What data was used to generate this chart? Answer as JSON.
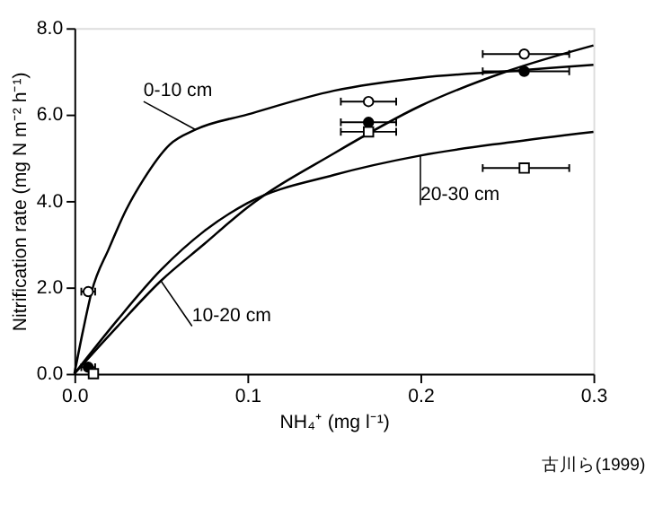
{
  "chart_data": {
    "type": "line",
    "xlabel": "NH₄⁺ (mg l⁻¹)",
    "ylabel": "Nitrification rate (mg N m⁻² h⁻¹)",
    "xlim": [
      0,
      0.3
    ],
    "ylim": [
      0,
      8
    ],
    "xticks": [
      {
        "value": 0,
        "label": "0.0"
      },
      0.1,
      0.2,
      0.3
    ],
    "yticks": [
      {
        "value": 0,
        "label": "0.0"
      },
      {
        "value": 2,
        "label": "2.0"
      },
      {
        "value": 4,
        "label": "4.0"
      },
      {
        "value": 6,
        "label": "6.0"
      },
      {
        "value": 8,
        "label": "8.0"
      }
    ],
    "grid": false,
    "series": [
      {
        "name": "0-10 cm",
        "color": "#000000",
        "x": [
          0,
          0.005,
          0.01,
          0.02,
          0.03,
          0.04,
          0.055,
          0.07,
          0.1,
          0.15,
          0.2,
          0.25,
          0.3
        ],
        "values": [
          0,
          1.0,
          1.9,
          2.9,
          3.8,
          4.5,
          5.3,
          5.65,
          6.0,
          6.55,
          6.85,
          7.0,
          7.15
        ]
      },
      {
        "name": "10-20 cm",
        "color": "#000000",
        "x": [
          0,
          0.025,
          0.05,
          0.075,
          0.1,
          0.15,
          0.2,
          0.25,
          0.3
        ],
        "values": [
          0,
          1.1,
          2.15,
          3.0,
          3.85,
          5.1,
          6.2,
          7.0,
          7.6
        ]
      },
      {
        "name": "20-30 cm",
        "color": "#000000",
        "x": [
          0,
          0.025,
          0.05,
          0.075,
          0.1,
          0.15,
          0.2,
          0.25,
          0.3
        ],
        "values": [
          0,
          1.25,
          2.4,
          3.3,
          3.95,
          4.6,
          5.05,
          5.35,
          5.6
        ]
      },
      {
        "type": "scatter",
        "marker": "circle",
        "color": "#ffffff",
        "x": [
          0.008,
          0.17,
          0.26
        ],
        "values": [
          1.9,
          6.3,
          7.4
        ],
        "xerrors": [
          0.004,
          [
            0.154,
            0.186
          ],
          [
            0.236,
            0.286
          ]
        ]
      },
      {
        "type": "scatter",
        "marker": "circle",
        "color": "#000000",
        "x": [
          0.008,
          0.17,
          0.26
        ],
        "values": [
          0.15,
          5.82,
          7.0
        ],
        "xerrors": [
          0.004,
          [
            0.154,
            0.186
          ],
          [
            0.236,
            0.286
          ]
        ]
      },
      {
        "type": "scatter",
        "marker": "square",
        "color": "#ffffff",
        "x": [
          0.011,
          0.17,
          0.26
        ],
        "values": [
          0.0,
          5.6,
          4.76
        ],
        "xerrors": [
          null,
          [
            0.154,
            0.186
          ],
          [
            0.236,
            0.286
          ]
        ]
      }
    ],
    "annotations": [
      "古川ら(1999)"
    ]
  }
}
